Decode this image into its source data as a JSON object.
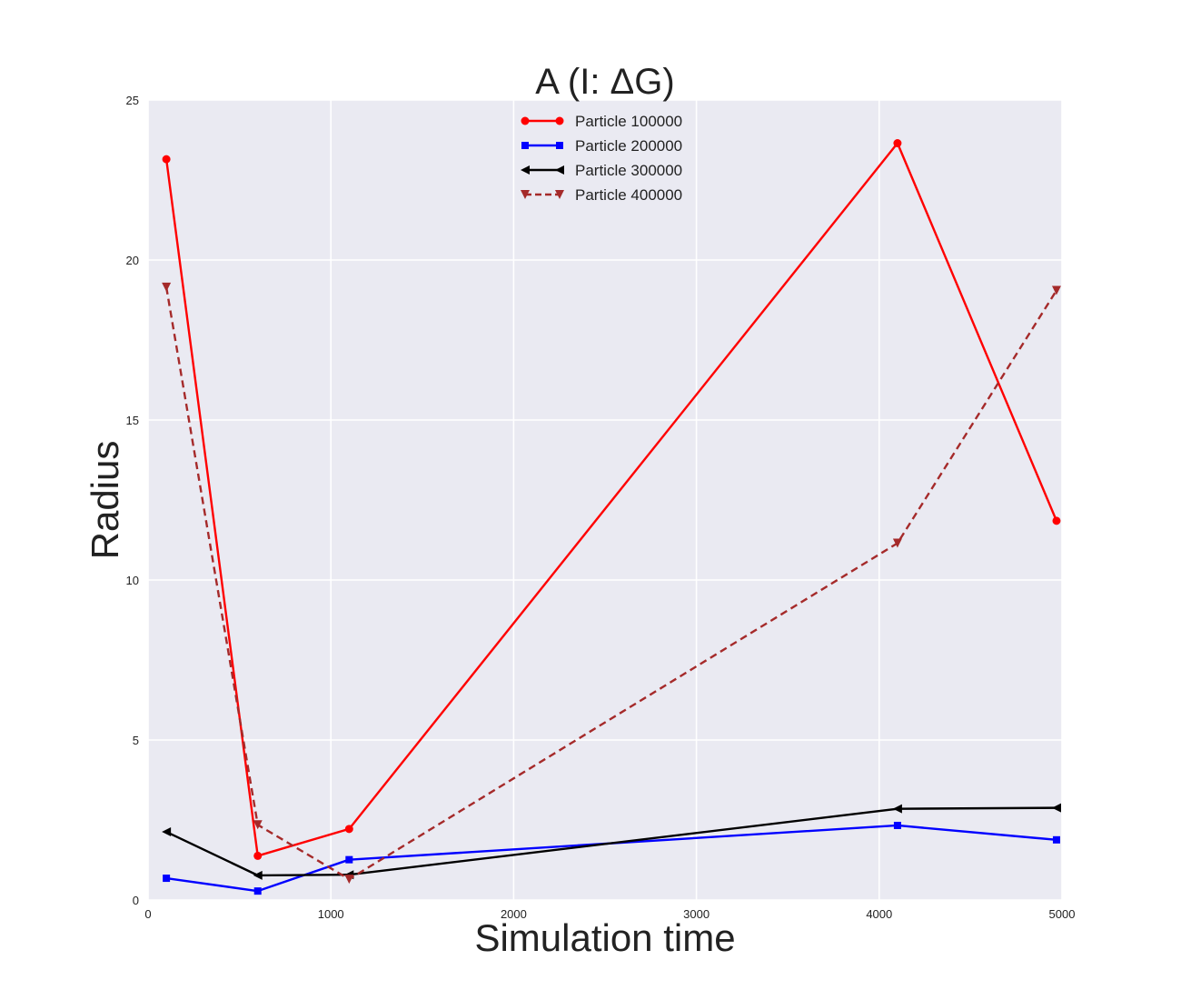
{
  "chart_data": {
    "type": "line",
    "title": "A (I: ΔG)",
    "xlabel": "Simulation time",
    "ylabel": "Radius",
    "xlim": [
      0,
      5000
    ],
    "ylim": [
      0,
      25
    ],
    "xticks": [
      0,
      1000,
      2000,
      3000,
      4000,
      5000
    ],
    "yticks": [
      0,
      5,
      10,
      15,
      20,
      25
    ],
    "xtick_labels": [
      "0",
      "1000",
      "2000",
      "3000",
      "4000",
      "5000"
    ],
    "ytick_labels": [
      "0",
      "5",
      "10",
      "15",
      "20",
      "25"
    ],
    "grid": true,
    "legend_position": "top-center",
    "background_color": "#eaeaf2",
    "grid_color": "#ffffff",
    "x": [
      100,
      600,
      1100,
      4100,
      4970
    ],
    "series": [
      {
        "name": "Particle 100000",
        "color": "#ff0000",
        "marker": "circle",
        "linestyle": "solid",
        "values": [
          23.15,
          1.38,
          2.22,
          23.65,
          11.85
        ]
      },
      {
        "name": "Particle 200000",
        "color": "#0000ff",
        "marker": "square",
        "linestyle": "solid",
        "values": [
          0.68,
          0.28,
          1.26,
          2.33,
          1.88
        ]
      },
      {
        "name": "Particle 300000",
        "color": "#000000",
        "marker": "triangle-left",
        "linestyle": "solid",
        "values": [
          2.13,
          0.77,
          0.79,
          2.85,
          2.88
        ]
      },
      {
        "name": "Particle 400000",
        "color": "#a52a2a",
        "marker": "triangle-down",
        "linestyle": "dashed",
        "values": [
          19.15,
          2.35,
          0.65,
          11.15,
          19.05
        ]
      }
    ]
  }
}
